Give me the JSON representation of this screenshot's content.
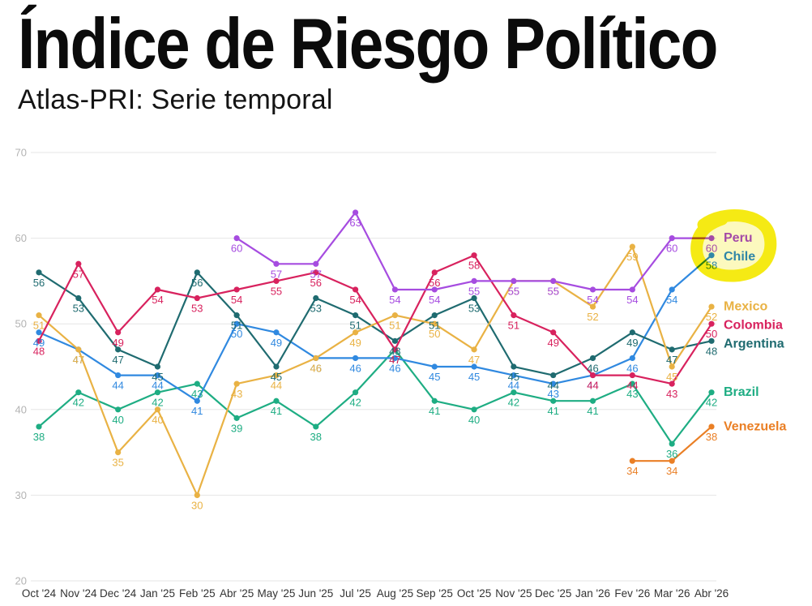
{
  "chart_data": {
    "type": "line",
    "title": "Índice de Riesgo Político",
    "subtitle": "Atlas-PRI: Serie temporal",
    "categories": [
      "Oct '24",
      "Nov '24",
      "Dec '24",
      "Jan '25",
      "Feb '25",
      "Abr '25",
      "May '25",
      "Jun '25",
      "Jul '25",
      "Aug '25",
      "Sep '25",
      "Oct '25",
      "Nov '25",
      "Dec '25",
      "Jan '26",
      "Fev '26",
      "Mar '26",
      "Abr '26"
    ],
    "ylim": [
      20,
      70
    ],
    "yticks": [
      20,
      30,
      40,
      50,
      60,
      70
    ],
    "grid": true,
    "legend": "right",
    "series": [
      {
        "name": "Peru",
        "color": "#a64ce0",
        "values": [
          null,
          null,
          null,
          null,
          null,
          60,
          57,
          57,
          63,
          54,
          54,
          55,
          55,
          55,
          54,
          54,
          60,
          60
        ]
      },
      {
        "name": "Chile",
        "color": "#3089e0",
        "values": [
          49,
          47,
          44,
          44,
          41,
          50,
          49,
          46,
          46,
          46,
          45,
          45,
          44,
          43,
          44,
          46,
          54,
          58
        ]
      },
      {
        "name": "Mexico",
        "color": "#e9b244",
        "values": [
          51,
          47,
          35,
          40,
          30,
          43,
          44,
          46,
          49,
          51,
          50,
          47,
          55,
          55,
          52,
          59,
          45,
          52
        ]
      },
      {
        "name": "Colombia",
        "color": "#d8225e",
        "values": [
          48,
          57,
          49,
          54,
          53,
          54,
          55,
          56,
          54,
          47,
          56,
          58,
          51,
          49,
          44,
          44,
          43,
          50
        ]
      },
      {
        "name": "Argentina",
        "color": "#1f6b70",
        "values": [
          56,
          53,
          47,
          45,
          56,
          51,
          45,
          53,
          51,
          48,
          51,
          53,
          45,
          44,
          46,
          49,
          47,
          48
        ]
      },
      {
        "name": "Brazil",
        "color": "#1ead83",
        "values": [
          38,
          42,
          40,
          42,
          43,
          39,
          41,
          38,
          42,
          47,
          41,
          40,
          42,
          41,
          41,
          43,
          36,
          42
        ]
      },
      {
        "name": "Venezuela",
        "color": "#ea7f25",
        "values": [
          null,
          null,
          null,
          null,
          null,
          null,
          null,
          null,
          null,
          null,
          null,
          null,
          null,
          null,
          null,
          34,
          34,
          38
        ]
      }
    ]
  },
  "highlight_color": "#f5ea14"
}
